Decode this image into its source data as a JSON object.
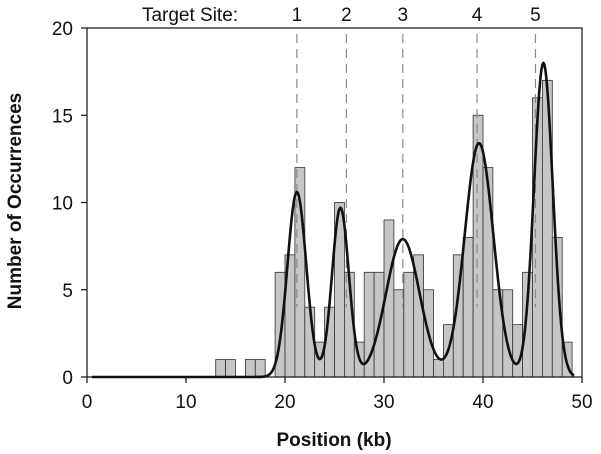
{
  "chart_data": {
    "type": "bar",
    "xlabel": "Position (kb)",
    "ylabel": "Number of Occurrences",
    "xlim": [
      0,
      50
    ],
    "ylim": [
      0,
      20
    ],
    "xticks": [
      0,
      10,
      20,
      30,
      40,
      50
    ],
    "yticks": [
      0,
      5,
      10,
      15,
      20
    ],
    "grid": false,
    "bin_width_kb": 1,
    "histogram": {
      "bin_centers": [
        13.5,
        14.5,
        16.5,
        17.5,
        19.5,
        20.5,
        21.5,
        22.5,
        23.5,
        24.5,
        25.5,
        26.5,
        27.5,
        28.5,
        29.5,
        30.5,
        31.5,
        32.5,
        33.5,
        34.5,
        35.5,
        36.5,
        37.5,
        38.5,
        39.5,
        40.5,
        41.5,
        42.5,
        43.5,
        44.5,
        45.5,
        46.5,
        47.5,
        48.5
      ],
      "counts": [
        1,
        1,
        1,
        1,
        6,
        7,
        12,
        4,
        2,
        4,
        10,
        6,
        2,
        6,
        6,
        9,
        5,
        6,
        7,
        5,
        1,
        3,
        7,
        8,
        15,
        12,
        5,
        5,
        3,
        6,
        16,
        17,
        8,
        2
      ]
    },
    "fit_curve": {
      "description_gaussian_peaks": [
        {
          "center": 21.2,
          "amplitude": 10.6,
          "sigma": 0.95
        },
        {
          "center": 25.6,
          "amplitude": 9.7,
          "sigma": 0.85
        },
        {
          "center": 31.9,
          "amplitude": 7.9,
          "sigma": 1.7
        },
        {
          "center": 39.6,
          "amplitude": 13.4,
          "sigma": 1.45
        },
        {
          "center": 46.1,
          "amplitude": 18.0,
          "sigma": 0.95
        }
      ]
    },
    "target_sites": {
      "label": "Target Site:",
      "sites": [
        {
          "label": "1",
          "x": 21.2
        },
        {
          "label": "2",
          "x": 26.2
        },
        {
          "label": "3",
          "x": 31.9
        },
        {
          "label": "4",
          "x": 39.4
        },
        {
          "label": "5",
          "x": 45.3
        }
      ]
    }
  }
}
